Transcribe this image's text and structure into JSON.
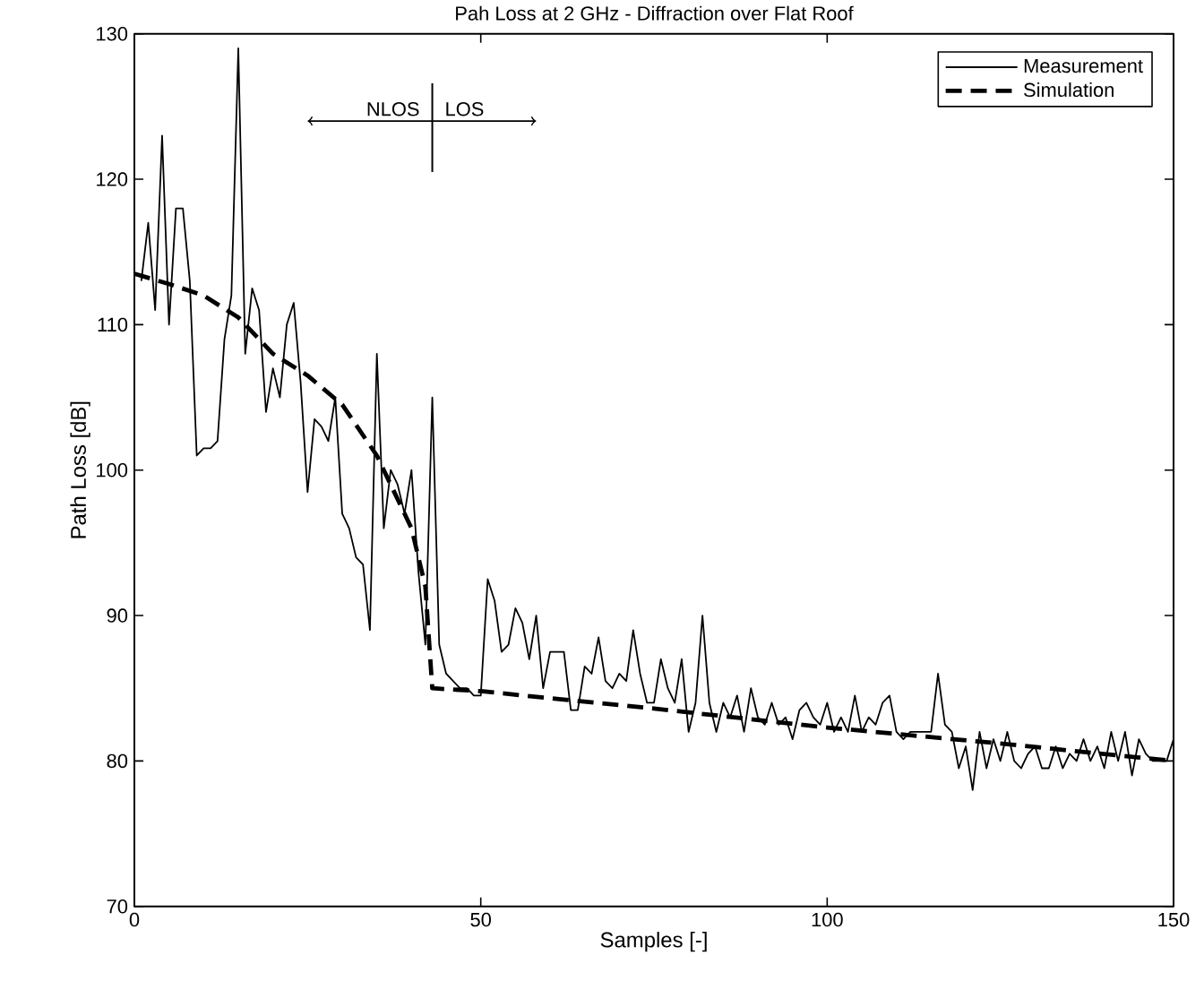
{
  "chart_data": {
    "type": "line",
    "title": "Pah Loss at 2 GHz - Diffraction over Flat Roof",
    "xlabel": "Samples [-]",
    "ylabel": "Path Loss [dB]",
    "xlim": [
      0,
      150
    ],
    "ylim": [
      70,
      130
    ],
    "xticks": [
      0,
      50,
      100,
      150
    ],
    "yticks": [
      70,
      80,
      90,
      100,
      110,
      120,
      130
    ],
    "grid": false,
    "legend": "top right",
    "marker": "none",
    "annotations": [
      "NLOS",
      "LOS"
    ],
    "ref_lines": [
      {
        "axis": "x",
        "value": 43,
        "label": null
      }
    ],
    "series": [
      {
        "name": "Measurement",
        "color": "#000000",
        "line_style": "solid",
        "x": [
          1,
          2,
          3,
          4,
          5,
          6,
          7,
          8,
          9,
          10,
          11,
          12,
          13,
          14,
          15,
          16,
          17,
          18,
          19,
          20,
          21,
          22,
          23,
          24,
          25,
          26,
          27,
          28,
          29,
          30,
          31,
          32,
          33,
          34,
          35,
          36,
          37,
          38,
          39,
          40,
          41,
          42,
          43,
          44,
          45,
          46,
          47,
          48,
          49,
          50,
          51,
          52,
          53,
          54,
          55,
          56,
          57,
          58,
          59,
          60,
          61,
          62,
          63,
          64,
          65,
          66,
          67,
          68,
          69,
          70,
          71,
          72,
          73,
          74,
          75,
          76,
          77,
          78,
          79,
          80,
          81,
          82,
          83,
          84,
          85,
          86,
          87,
          88,
          89,
          90,
          91,
          92,
          93,
          94,
          95,
          96,
          97,
          98,
          99,
          100,
          101,
          102,
          103,
          104,
          105,
          106,
          107,
          108,
          109,
          110,
          111,
          112,
          113,
          114,
          115,
          116,
          117,
          118,
          119,
          120,
          121,
          122,
          123,
          124,
          125,
          126,
          127,
          128,
          129,
          130,
          131,
          132,
          133,
          134,
          135,
          136,
          137,
          138,
          139,
          140,
          141,
          142,
          143,
          144,
          145,
          146,
          147,
          148,
          149,
          150
        ],
        "values": [
          113,
          117,
          111,
          123,
          110,
          118,
          118,
          113,
          101,
          101.5,
          101.5,
          102,
          109,
          112,
          129,
          108,
          112.5,
          111,
          104,
          107,
          105,
          110,
          111.5,
          106,
          98.5,
          103.5,
          103,
          102,
          105,
          97,
          96,
          94,
          93.5,
          89,
          108,
          96,
          100,
          99,
          97,
          100,
          93,
          88,
          105,
          88,
          86,
          85.5,
          85,
          85,
          84.5,
          84.5,
          92.5,
          91,
          87.5,
          88,
          90.5,
          89.5,
          87,
          90,
          85,
          87.5,
          87.5,
          87.5,
          83.5,
          83.5,
          86.5,
          86,
          88.5,
          85.5,
          85,
          86,
          85.5,
          89,
          86,
          84,
          84,
          87,
          85,
          84,
          87,
          82,
          84,
          90,
          84,
          82,
          84,
          83,
          84.5,
          82,
          85,
          83,
          82.5,
          84,
          82.5,
          83,
          81.5,
          83.5,
          84,
          83,
          82.5,
          84,
          82,
          83,
          82,
          84.5,
          82,
          83,
          82.5,
          84,
          84.5,
          82,
          81.5,
          82,
          82,
          82,
          82,
          86,
          82.5,
          82,
          79.5,
          81,
          78,
          82,
          79.5,
          81.5,
          80,
          82,
          80,
          79.5,
          80.5,
          81,
          79.5,
          79.5,
          81,
          79.5,
          80.5,
          80,
          81.5,
          80,
          81,
          79.5,
          82,
          80,
          82,
          79,
          81.5,
          80.5,
          80,
          80,
          80,
          81.5
        ]
      },
      {
        "name": "Simulation",
        "color": "#000000",
        "line_style": "dashed",
        "x": [
          0,
          5,
          10,
          15,
          20,
          25,
          30,
          35,
          40,
          42,
          43,
          50,
          75,
          100,
          125,
          150
        ],
        "values": [
          113.5,
          112.8,
          112,
          110.5,
          108,
          106.5,
          104.5,
          101,
          96,
          92,
          85,
          84.8,
          83.6,
          82.3,
          81.2,
          80
        ]
      }
    ]
  }
}
